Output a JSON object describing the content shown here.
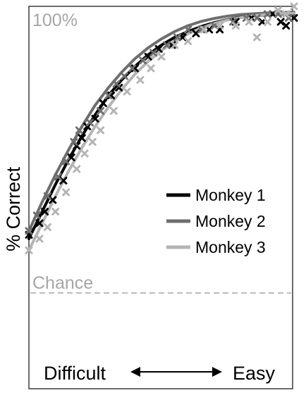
{
  "chart_data": {
    "type": "line",
    "title": "",
    "ylabel": "% Correct",
    "xlabel": "",
    "top_label": "100%",
    "chance_label": "Chance",
    "x_axis_left_label": "Difficult",
    "x_axis_right_label": "Easy",
    "xlim": [
      0,
      1
    ],
    "ylim": [
      0,
      1
    ],
    "chance_level": 0.28,
    "grid": false,
    "legend_position": "center-right",
    "series": [
      {
        "name": "Monkey 1",
        "color": "#000000",
        "fit": [
          [
            0,
            0.42
          ],
          [
            0.05,
            0.49
          ],
          [
            0.1,
            0.56
          ],
          [
            0.15,
            0.625
          ],
          [
            0.2,
            0.685
          ],
          [
            0.25,
            0.74
          ],
          [
            0.3,
            0.79
          ],
          [
            0.35,
            0.83
          ],
          [
            0.4,
            0.865
          ],
          [
            0.45,
            0.895
          ],
          [
            0.5,
            0.92
          ],
          [
            0.55,
            0.94
          ],
          [
            0.6,
            0.955
          ],
          [
            0.65,
            0.968
          ],
          [
            0.7,
            0.978
          ],
          [
            0.75,
            0.986
          ],
          [
            0.8,
            0.992
          ],
          [
            0.85,
            0.996
          ],
          [
            0.9,
            0.998
          ],
          [
            0.95,
            1.0
          ],
          [
            1.0,
            1.0
          ]
        ],
        "points": [
          [
            0.0,
            0.43
          ],
          [
            0.04,
            0.46
          ],
          [
            0.06,
            0.49
          ],
          [
            0.09,
            0.52
          ],
          [
            0.13,
            0.57
          ],
          [
            0.16,
            0.63
          ],
          [
            0.18,
            0.66
          ],
          [
            0.2,
            0.68
          ],
          [
            0.22,
            0.71
          ],
          [
            0.25,
            0.73
          ],
          [
            0.28,
            0.77
          ],
          [
            0.31,
            0.79
          ],
          [
            0.34,
            0.81
          ],
          [
            0.4,
            0.86
          ],
          [
            0.45,
            0.89
          ],
          [
            0.49,
            0.91
          ],
          [
            0.54,
            0.92
          ],
          [
            0.58,
            0.94
          ],
          [
            0.63,
            0.95
          ],
          [
            0.68,
            0.96
          ],
          [
            0.72,
            0.96
          ],
          [
            0.78,
            0.98
          ],
          [
            0.84,
            0.99
          ],
          [
            0.88,
            0.98
          ],
          [
            0.92,
            1.0
          ],
          [
            0.95,
            0.98
          ],
          [
            0.97,
            0.97
          ],
          [
            1.0,
            0.99
          ]
        ]
      },
      {
        "name": "Monkey 2",
        "color": "#6e6e6e",
        "fit": [
          [
            0,
            0.44
          ],
          [
            0.05,
            0.515
          ],
          [
            0.1,
            0.585
          ],
          [
            0.15,
            0.65
          ],
          [
            0.2,
            0.71
          ],
          [
            0.25,
            0.765
          ],
          [
            0.3,
            0.81
          ],
          [
            0.35,
            0.85
          ],
          [
            0.4,
            0.885
          ],
          [
            0.45,
            0.913
          ],
          [
            0.5,
            0.936
          ],
          [
            0.55,
            0.955
          ],
          [
            0.6,
            0.97
          ],
          [
            0.65,
            0.981
          ],
          [
            0.7,
            0.989
          ],
          [
            0.75,
            0.995
          ],
          [
            0.8,
            0.999
          ],
          [
            0.85,
            1.001
          ],
          [
            0.9,
            1.003
          ],
          [
            0.95,
            1.004
          ],
          [
            1.0,
            1.005
          ]
        ],
        "points": [
          [
            0.0,
            0.44
          ],
          [
            0.03,
            0.48
          ],
          [
            0.07,
            0.53
          ],
          [
            0.11,
            0.58
          ],
          [
            0.14,
            0.62
          ],
          [
            0.17,
            0.67
          ],
          [
            0.19,
            0.7
          ],
          [
            0.23,
            0.72
          ],
          [
            0.27,
            0.75
          ],
          [
            0.3,
            0.79
          ],
          [
            0.33,
            0.82
          ],
          [
            0.36,
            0.84
          ],
          [
            0.39,
            0.86
          ],
          [
            0.43,
            0.88
          ],
          [
            0.47,
            0.9
          ],
          [
            0.52,
            0.92
          ],
          [
            0.56,
            0.94
          ],
          [
            0.6,
            0.96
          ],
          [
            0.65,
            0.96
          ],
          [
            0.7,
            0.97
          ],
          [
            0.77,
            0.98
          ],
          [
            0.82,
            0.99
          ],
          [
            0.86,
            0.99
          ],
          [
            0.9,
            1.0
          ],
          [
            0.94,
            1.0
          ],
          [
            0.98,
            0.99
          ]
        ]
      },
      {
        "name": "Monkey 3",
        "color": "#b4b4b4",
        "fit": [
          [
            0,
            0.39
          ],
          [
            0.05,
            0.46
          ],
          [
            0.1,
            0.53
          ],
          [
            0.15,
            0.595
          ],
          [
            0.2,
            0.655
          ],
          [
            0.25,
            0.71
          ],
          [
            0.3,
            0.76
          ],
          [
            0.35,
            0.805
          ],
          [
            0.4,
            0.845
          ],
          [
            0.45,
            0.878
          ],
          [
            0.5,
            0.906
          ],
          [
            0.55,
            0.93
          ],
          [
            0.6,
            0.949
          ],
          [
            0.65,
            0.964
          ],
          [
            0.7,
            0.976
          ],
          [
            0.75,
            0.985
          ],
          [
            0.8,
            0.991
          ],
          [
            0.85,
            0.996
          ],
          [
            0.9,
            0.999
          ],
          [
            0.95,
            1.001
          ],
          [
            1.0,
            1.002
          ]
        ],
        "points": [
          [
            0.0,
            0.39
          ],
          [
            0.04,
            0.42
          ],
          [
            0.07,
            0.45
          ],
          [
            0.1,
            0.49
          ],
          [
            0.14,
            0.54
          ],
          [
            0.18,
            0.6
          ],
          [
            0.21,
            0.64
          ],
          [
            0.24,
            0.67
          ],
          [
            0.27,
            0.7
          ],
          [
            0.32,
            0.75
          ],
          [
            0.37,
            0.8
          ],
          [
            0.42,
            0.83
          ],
          [
            0.46,
            0.86
          ],
          [
            0.5,
            0.89
          ],
          [
            0.55,
            0.92
          ],
          [
            0.6,
            0.93
          ],
          [
            0.66,
            0.96
          ],
          [
            0.72,
            0.97
          ],
          [
            0.78,
            0.97
          ],
          [
            0.83,
            0.98
          ],
          [
            0.86,
            0.94
          ],
          [
            0.9,
            0.98
          ],
          [
            0.94,
            1.01
          ],
          [
            0.97,
            1.0
          ],
          [
            1.0,
            1.02
          ]
        ]
      }
    ]
  }
}
